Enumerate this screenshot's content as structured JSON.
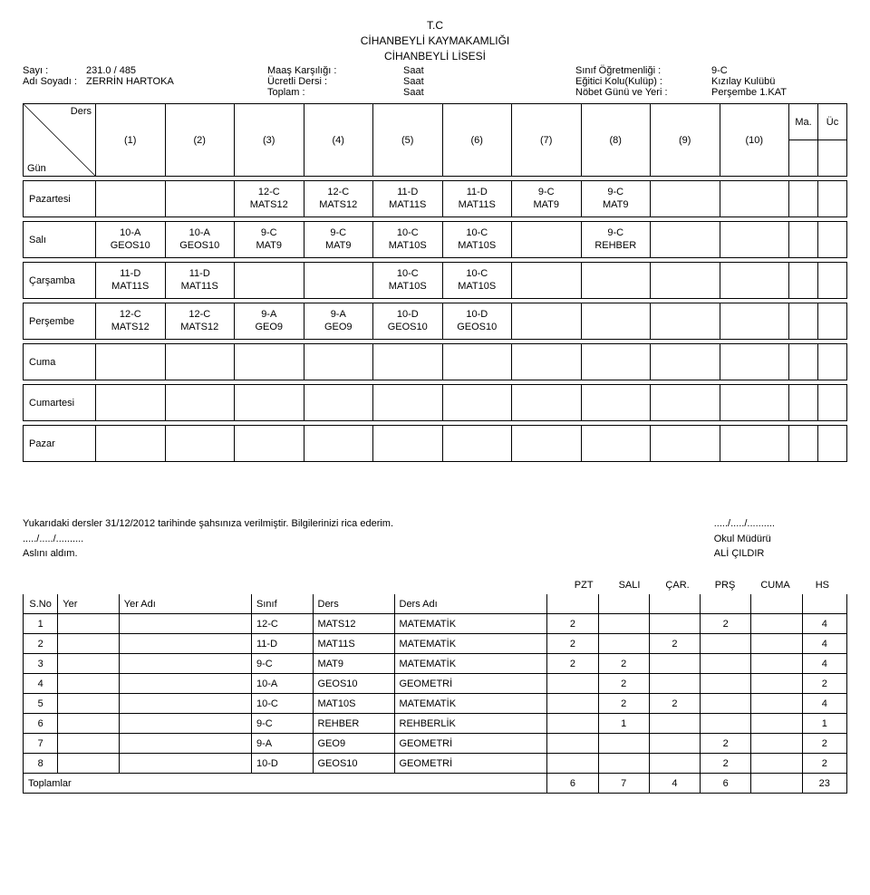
{
  "header": {
    "title_line1": "T.C",
    "title_line2": "CİHANBEYLİ KAYMAKAMLIĞI",
    "title_line3": "CİHANBEYLİ LİSESİ",
    "sayi_label": "Sayı  :",
    "sayi_value": "231.0 / 485",
    "adsoyad_label": "Adı Soyadı  :",
    "adsoyad_value": "ZERRİN HARTOKA",
    "maas_label": "Maaş Karşılığı  :",
    "maas_value": "Saat",
    "ucretli_label": "Ücretli Dersi  :",
    "ucretli_value": "Saat",
    "toplam_label": "Toplam  :",
    "toplam_value": "Saat",
    "sinif_label": "Sınıf Öğretmenliği  :",
    "sinif_value": "9-C",
    "egitici_label": "Eğitici Kolu(Kulüp)  :",
    "egitici_value": "Kızılay Kulübü",
    "nobet_label": "Nöbet Günü ve Yeri  :",
    "nobet_value": "Perşembe 1.KAT"
  },
  "schedule": {
    "corner_top": "Ders",
    "corner_bot": "Gün",
    "cols": [
      "(1)",
      "(2)",
      "(3)",
      "(4)",
      "(5)",
      "(6)",
      "(7)",
      "(8)",
      "(9)",
      "(10)"
    ],
    "ma": "Ma.",
    "uc": "Üc",
    "days": [
      "Pazartesi",
      "Salı",
      "Çarşamba",
      "Perşembe",
      "Cuma",
      "Cumartesi",
      "Pazar"
    ],
    "rows": [
      [
        "",
        "",
        "12-C\nMATS12",
        "12-C\nMATS12",
        "11-D\nMAT11S",
        "11-D\nMAT11S",
        "9-C\nMAT9",
        "9-C\nMAT9",
        "",
        ""
      ],
      [
        "10-A\nGEOS10",
        "10-A\nGEOS10",
        "9-C\nMAT9",
        "9-C\nMAT9",
        "10-C\nMAT10S",
        "10-C\nMAT10S",
        "",
        "9-C\nREHBER",
        "",
        ""
      ],
      [
        "11-D\nMAT11S",
        "11-D\nMAT11S",
        "",
        "",
        "10-C\nMAT10S",
        "10-C\nMAT10S",
        "",
        "",
        "",
        ""
      ],
      [
        "12-C\nMATS12",
        "12-C\nMATS12",
        "9-A\nGEO9",
        "9-A\nGEO9",
        "10-D\nGEOS10",
        "10-D\nGEOS10",
        "",
        "",
        "",
        ""
      ],
      [
        "",
        "",
        "",
        "",
        "",
        "",
        "",
        "",
        "",
        ""
      ],
      [
        "",
        "",
        "",
        "",
        "",
        "",
        "",
        "",
        "",
        ""
      ],
      [
        "",
        "",
        "",
        "",
        "",
        "",
        "",
        "",
        "",
        ""
      ]
    ]
  },
  "footer": {
    "sentence1": "Yukarıdaki dersler 31/12/2012 tarihinde şahsınıza verilmiştir. Bilgilerinizi rica ederim.",
    "date_dots_left": "...../...../..........",
    "aslini": "Aslını aldım.",
    "date_dots_right": "...../...../..........",
    "mudur": "Okul Müdürü",
    "mudur_name": "ALİ ÇILDIR"
  },
  "summary": {
    "day_headers": [
      "PZT",
      "SALI",
      "ÇAR.",
      "PRŞ",
      "CUMA",
      "HS"
    ],
    "cols": {
      "no": "S.No",
      "yer": "Yer",
      "yeradi": "Yer Adı",
      "sinif": "Sınıf",
      "ders": "Ders",
      "dersadi": "Ders Adı"
    },
    "rows": [
      {
        "no": "1",
        "sinif": "12-C",
        "ders": "MATS12",
        "dersadi": "MATEMATİK",
        "pzt": "2",
        "sali": "",
        "car": "",
        "prs": "2",
        "cuma": "",
        "hs": "4"
      },
      {
        "no": "2",
        "sinif": "11-D",
        "ders": "MAT11S",
        "dersadi": "MATEMATİK",
        "pzt": "2",
        "sali": "",
        "car": "2",
        "prs": "",
        "cuma": "",
        "hs": "4"
      },
      {
        "no": "3",
        "sinif": "9-C",
        "ders": "MAT9",
        "dersadi": "MATEMATİK",
        "pzt": "2",
        "sali": "2",
        "car": "",
        "prs": "",
        "cuma": "",
        "hs": "4"
      },
      {
        "no": "4",
        "sinif": "10-A",
        "ders": "GEOS10",
        "dersadi": "GEOMETRİ",
        "pzt": "",
        "sali": "2",
        "car": "",
        "prs": "",
        "cuma": "",
        "hs": "2"
      },
      {
        "no": "5",
        "sinif": "10-C",
        "ders": "MAT10S",
        "dersadi": "MATEMATİK",
        "pzt": "",
        "sali": "2",
        "car": "2",
        "prs": "",
        "cuma": "",
        "hs": "4"
      },
      {
        "no": "6",
        "sinif": "9-C",
        "ders": "REHBER",
        "dersadi": "REHBERLİK",
        "pzt": "",
        "sali": "1",
        "car": "",
        "prs": "",
        "cuma": "",
        "hs": "1"
      },
      {
        "no": "7",
        "sinif": "9-A",
        "ders": "GEO9",
        "dersadi": "GEOMETRİ",
        "pzt": "",
        "sali": "",
        "car": "",
        "prs": "2",
        "cuma": "",
        "hs": "2"
      },
      {
        "no": "8",
        "sinif": "10-D",
        "ders": "GEOS10",
        "dersadi": "GEOMETRİ",
        "pzt": "",
        "sali": "",
        "car": "",
        "prs": "2",
        "cuma": "",
        "hs": "2"
      }
    ],
    "totals_label": "Toplamlar",
    "totals": {
      "pzt": "6",
      "sali": "7",
      "car": "4",
      "prs": "6",
      "cuma": "",
      "hs": "23"
    }
  }
}
